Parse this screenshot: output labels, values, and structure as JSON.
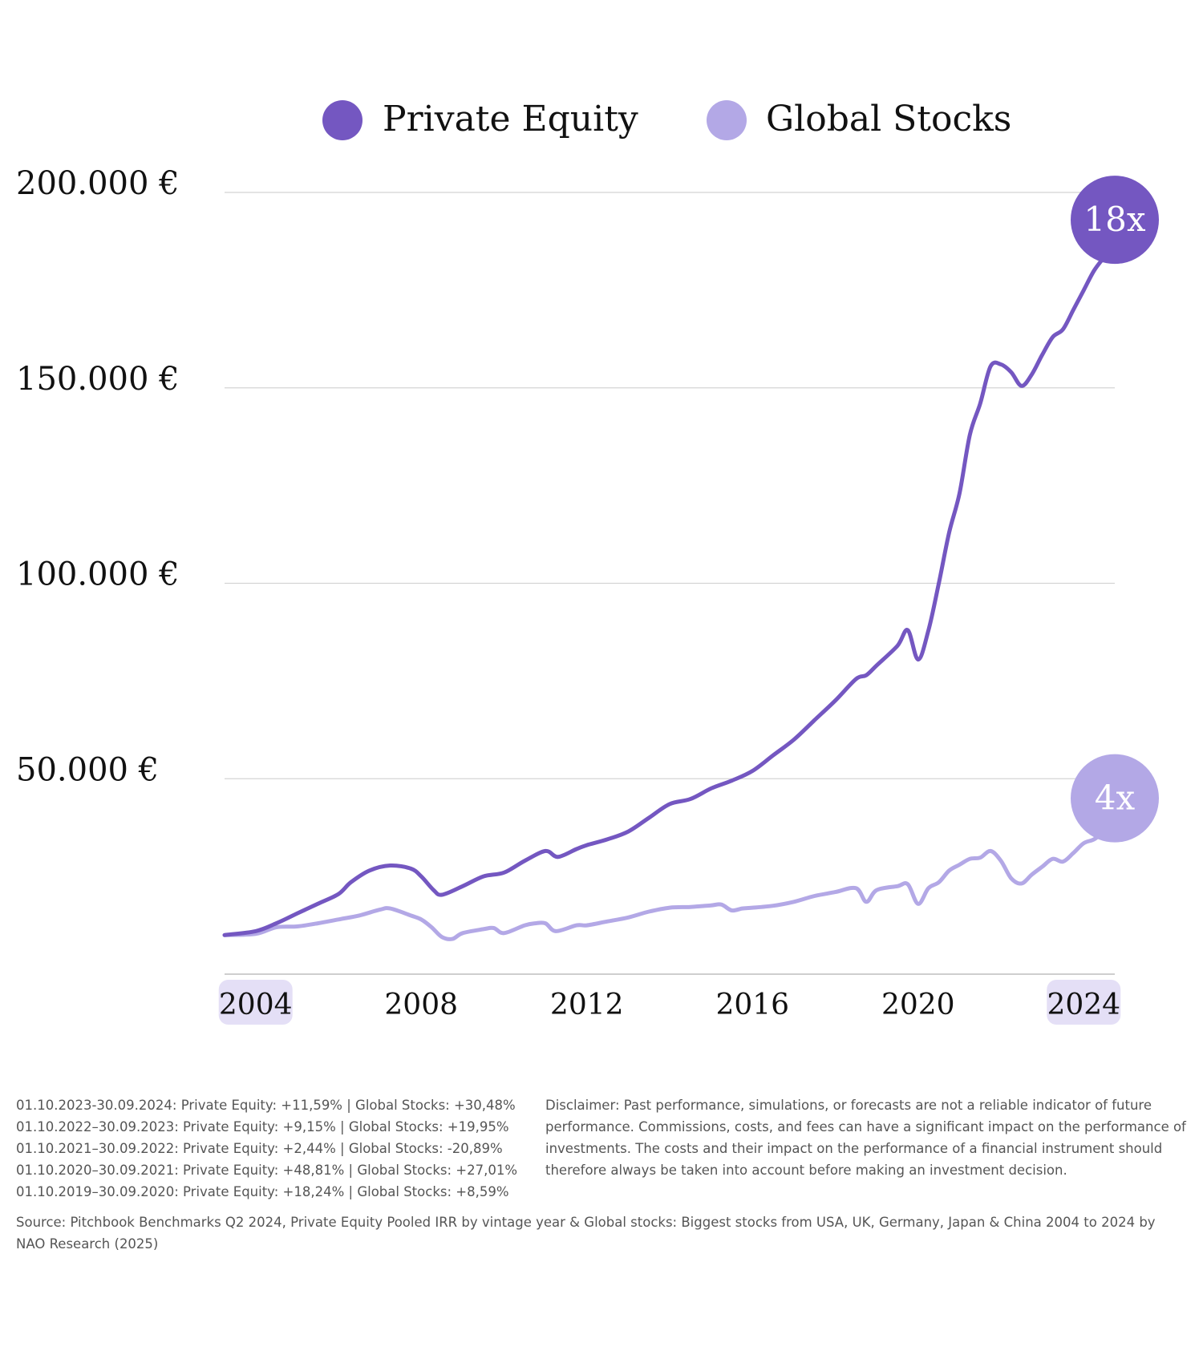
{
  "colors": {
    "private_equity": "#7457c1",
    "global_stocks": "#b3a8e6",
    "highlight_bg": "#e4dff6",
    "grid": "#d4d4d4",
    "text": "#111111",
    "footnote": "#555555"
  },
  "badges": {
    "private_equity": "18x",
    "global_stocks": "4x"
  },
  "chart_data": {
    "type": "line",
    "title": "",
    "legend": [
      "Private Equity",
      "Global Stocks"
    ],
    "legend_position": "top-center",
    "y_ticks": [
      {
        "value": 50000,
        "label": "50.000 €"
      },
      {
        "value": 100000,
        "label": "100.000 €"
      },
      {
        "value": 150000,
        "label": "150.000 €"
      },
      {
        "value": 200000,
        "label": "200.000 €"
      }
    ],
    "x_ticks": [
      {
        "value": 2004,
        "label": "2004",
        "highlight": true
      },
      {
        "value": 2008,
        "label": "2008",
        "highlight": false
      },
      {
        "value": 2012,
        "label": "2012",
        "highlight": false
      },
      {
        "value": 2016,
        "label": "2016",
        "highlight": false
      },
      {
        "value": 2020,
        "label": "2020",
        "highlight": false
      },
      {
        "value": 2024,
        "label": "2024",
        "highlight": true
      }
    ],
    "xlim": [
      2003.25,
      2024.75
    ],
    "ylim": [
      0,
      200000
    ],
    "grid": true,
    "series": [
      {
        "name": "Private Equity",
        "color": "#7457c1",
        "points": [
          [
            2003.25,
            10000
          ],
          [
            2004.0,
            11000
          ],
          [
            2004.5,
            13000
          ],
          [
            2005.0,
            15500
          ],
          [
            2005.5,
            18000
          ],
          [
            2006.0,
            20500
          ],
          [
            2006.3,
            23500
          ],
          [
            2006.75,
            26500
          ],
          [
            2007.25,
            27800
          ],
          [
            2007.75,
            27000
          ],
          [
            2008.0,
            25000
          ],
          [
            2008.3,
            21500
          ],
          [
            2008.5,
            20300
          ],
          [
            2009.0,
            22500
          ],
          [
            2009.5,
            25000
          ],
          [
            2010.0,
            26000
          ],
          [
            2010.5,
            29000
          ],
          [
            2011.0,
            31500
          ],
          [
            2011.3,
            30000
          ],
          [
            2011.75,
            32000
          ],
          [
            2012.0,
            33000
          ],
          [
            2012.5,
            34500
          ],
          [
            2013.0,
            36500
          ],
          [
            2013.5,
            40000
          ],
          [
            2014.0,
            43500
          ],
          [
            2014.5,
            44800
          ],
          [
            2015.0,
            47500
          ],
          [
            2015.5,
            49500
          ],
          [
            2016.0,
            52000
          ],
          [
            2016.5,
            56000
          ],
          [
            2017.0,
            60000
          ],
          [
            2017.5,
            65000
          ],
          [
            2018.0,
            70000
          ],
          [
            2018.5,
            75500
          ],
          [
            2018.75,
            76500
          ],
          [
            2019.0,
            79000
          ],
          [
            2019.5,
            84000
          ],
          [
            2019.75,
            88000
          ],
          [
            2020.0,
            80500
          ],
          [
            2020.25,
            88000
          ],
          [
            2020.5,
            100000
          ],
          [
            2020.75,
            113000
          ],
          [
            2021.0,
            123000
          ],
          [
            2021.25,
            138000
          ],
          [
            2021.5,
            146000
          ],
          [
            2021.75,
            155500
          ],
          [
            2022.0,
            156000
          ],
          [
            2022.25,
            154000
          ],
          [
            2022.5,
            150500
          ],
          [
            2022.75,
            153500
          ],
          [
            2023.0,
            158500
          ],
          [
            2023.25,
            163000
          ],
          [
            2023.5,
            165000
          ],
          [
            2023.75,
            170000
          ],
          [
            2024.0,
            175000
          ],
          [
            2024.25,
            180000
          ],
          [
            2024.5,
            183500
          ]
        ]
      },
      {
        "name": "Global Stocks",
        "color": "#b3a8e6",
        "points": [
          [
            2003.25,
            10000
          ],
          [
            2004.0,
            10300
          ],
          [
            2004.5,
            12000
          ],
          [
            2005.0,
            12200
          ],
          [
            2005.5,
            13000
          ],
          [
            2006.0,
            14000
          ],
          [
            2006.5,
            15000
          ],
          [
            2007.0,
            16500
          ],
          [
            2007.25,
            16800
          ],
          [
            2007.75,
            15000
          ],
          [
            2008.0,
            14000
          ],
          [
            2008.25,
            12000
          ],
          [
            2008.5,
            9500
          ],
          [
            2008.75,
            9000
          ],
          [
            2009.0,
            10500
          ],
          [
            2009.5,
            11500
          ],
          [
            2009.75,
            11800
          ],
          [
            2010.0,
            10500
          ],
          [
            2010.5,
            12500
          ],
          [
            2010.75,
            13000
          ],
          [
            2011.0,
            13000
          ],
          [
            2011.25,
            11000
          ],
          [
            2011.75,
            12500
          ],
          [
            2012.0,
            12500
          ],
          [
            2012.5,
            13500
          ],
          [
            2013.0,
            14500
          ],
          [
            2013.5,
            16000
          ],
          [
            2014.0,
            17000
          ],
          [
            2014.5,
            17200
          ],
          [
            2015.0,
            17600
          ],
          [
            2015.25,
            17800
          ],
          [
            2015.5,
            16300
          ],
          [
            2015.75,
            16800
          ],
          [
            2016.0,
            17000
          ],
          [
            2016.5,
            17500
          ],
          [
            2017.0,
            18500
          ],
          [
            2017.5,
            20000
          ],
          [
            2018.0,
            21000
          ],
          [
            2018.5,
            22000
          ],
          [
            2018.75,
            18500
          ],
          [
            2019.0,
            21500
          ],
          [
            2019.5,
            22500
          ],
          [
            2019.75,
            23000
          ],
          [
            2020.0,
            18000
          ],
          [
            2020.25,
            22000
          ],
          [
            2020.5,
            23500
          ],
          [
            2020.75,
            26500
          ],
          [
            2021.0,
            28000
          ],
          [
            2021.25,
            29500
          ],
          [
            2021.5,
            29800
          ],
          [
            2021.75,
            31500
          ],
          [
            2022.0,
            29000
          ],
          [
            2022.25,
            24500
          ],
          [
            2022.5,
            23200
          ],
          [
            2022.75,
            25500
          ],
          [
            2023.0,
            27500
          ],
          [
            2023.25,
            29500
          ],
          [
            2023.5,
            28800
          ],
          [
            2023.75,
            31000
          ],
          [
            2024.0,
            33500
          ],
          [
            2024.25,
            34500
          ],
          [
            2024.5,
            36500
          ]
        ]
      }
    ]
  },
  "footnotes": {
    "returns": [
      "01.10.2023-30.09.2024: Private Equity: +11,59% | Global Stocks: +30,48%",
      "01.10.2022–30.09.2023: Private Equity: +9,15% | Global Stocks: +19,95%",
      "01.10.2021–30.09.2022: Private Equity: +2,44% | Global Stocks: -20,89%",
      "01.10.2020–30.09.2021: Private Equity: +48,81% | Global Stocks: +27,01%",
      "01.10.2019–30.09.2020: Private Equity: +18,24% | Global Stocks: +8,59%"
    ],
    "disclaimer": "Disclaimer: Past performance, simulations, or forecasts are not a reliable indicator of future performance. Commissions, costs, and fees can have a significant impact on the performance of investments. The costs and their impact on the performance of a financial instrument should therefore always be taken into account before making an investment decision.",
    "source": "Source: Pitchbook Benchmarks Q2 2024, Private Equity Pooled IRR by vintage year & Global stocks: Biggest stocks from USA, UK, Germany, Japan & China 2004 to 2024 by NAO Research (2025)"
  }
}
